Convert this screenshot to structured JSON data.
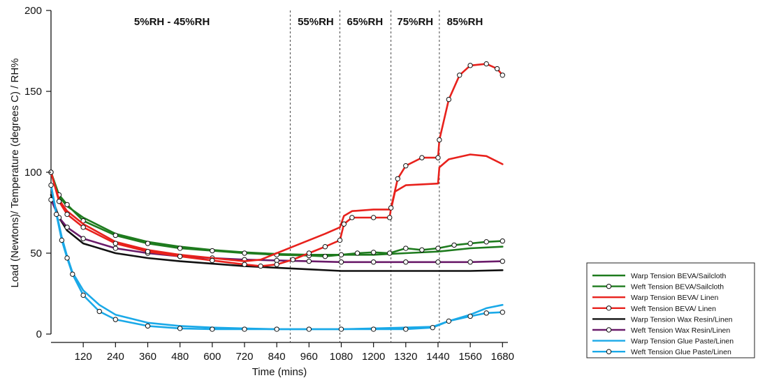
{
  "chart_data": {
    "type": "line",
    "title": "",
    "xlabel": "Time (mins)",
    "ylabel": "Load (Newtons)/ Temperature (degrees C) / RH%",
    "xlim": [
      0,
      1700
    ],
    "ylim": [
      0,
      200
    ],
    "x_ticks": [
      120,
      240,
      360,
      480,
      600,
      720,
      840,
      960,
      1080,
      1200,
      1320,
      1440,
      1560,
      1680
    ],
    "x_tick_labels": [
      "120",
      "240",
      "360",
      "480",
      "600",
      "720",
      "840",
      "960",
      "1080",
      "1200",
      "1320",
      "1440",
      "1560",
      "1680"
    ],
    "y_ticks": [
      0,
      50,
      100,
      150,
      200
    ],
    "y_tick_labels": [
      "0",
      "50",
      "100",
      "150",
      "200"
    ],
    "grid": false,
    "legend_position": "bottom-right",
    "phase_boundaries": [
      890,
      1075,
      1265,
      1445
    ],
    "phases": [
      {
        "label": "5%RH - 45%RH",
        "x": 450
      },
      {
        "label": "55%RH",
        "x": 985
      },
      {
        "label": "65%RH",
        "x": 1168
      },
      {
        "label": "75%RH",
        "x": 1355
      },
      {
        "label": "85%RH",
        "x": 1540
      }
    ],
    "series": [
      {
        "name": "Warp Tension BEVA/Sailcloth",
        "color": "#1e7b1e",
        "markers": false,
        "points": [
          [
            0,
            100
          ],
          [
            30,
            85
          ],
          [
            60,
            79
          ],
          [
            120,
            72
          ],
          [
            240,
            62
          ],
          [
            360,
            57
          ],
          [
            480,
            54
          ],
          [
            600,
            52
          ],
          [
            720,
            50.5
          ],
          [
            840,
            49.5
          ],
          [
            960,
            49
          ],
          [
            1080,
            49
          ],
          [
            1200,
            49
          ],
          [
            1320,
            50
          ],
          [
            1440,
            51
          ],
          [
            1560,
            53
          ],
          [
            1680,
            54
          ]
        ]
      },
      {
        "name": "Weft Tension BEVA/Sailcloth",
        "color": "#1e7b1e",
        "markers": true,
        "points": [
          [
            0,
            100
          ],
          [
            30,
            86
          ],
          [
            60,
            80
          ],
          [
            120,
            70
          ],
          [
            240,
            61
          ],
          [
            360,
            56
          ],
          [
            480,
            53
          ],
          [
            600,
            51.5
          ],
          [
            720,
            50
          ],
          [
            840,
            49
          ],
          [
            960,
            48.5
          ],
          [
            1020,
            48
          ],
          [
            1080,
            49
          ],
          [
            1140,
            50
          ],
          [
            1200,
            50.5
          ],
          [
            1260,
            50
          ],
          [
            1320,
            53
          ],
          [
            1380,
            52
          ],
          [
            1440,
            53
          ],
          [
            1500,
            55
          ],
          [
            1560,
            56
          ],
          [
            1620,
            57
          ],
          [
            1680,
            57.5
          ]
        ]
      },
      {
        "name": "Warp Tension BEVA/ Linen",
        "color": "#e8211c",
        "markers": false,
        "points": [
          [
            0,
            100
          ],
          [
            30,
            83
          ],
          [
            60,
            76
          ],
          [
            120,
            68
          ],
          [
            240,
            57
          ],
          [
            360,
            52
          ],
          [
            480,
            49
          ],
          [
            600,
            47
          ],
          [
            720,
            45
          ],
          [
            780,
            46
          ],
          [
            840,
            50
          ],
          [
            900,
            54
          ],
          [
            960,
            58
          ],
          [
            1020,
            62
          ],
          [
            1075,
            66
          ],
          [
            1090,
            73
          ],
          [
            1120,
            76
          ],
          [
            1200,
            77
          ],
          [
            1265,
            77
          ],
          [
            1280,
            88
          ],
          [
            1320,
            92
          ],
          [
            1440,
            93
          ],
          [
            1445,
            103
          ],
          [
            1480,
            108
          ],
          [
            1560,
            111
          ],
          [
            1620,
            110
          ],
          [
            1680,
            105
          ]
        ]
      },
      {
        "name": "Weft Tension BEVA/ Linen",
        "color": "#e8211c",
        "markers": true,
        "points": [
          [
            0,
            100
          ],
          [
            30,
            82
          ],
          [
            60,
            74
          ],
          [
            120,
            66
          ],
          [
            240,
            56
          ],
          [
            360,
            51
          ],
          [
            480,
            48
          ],
          [
            600,
            45.5
          ],
          [
            720,
            43
          ],
          [
            780,
            42
          ],
          [
            840,
            43
          ],
          [
            900,
            46
          ],
          [
            960,
            50
          ],
          [
            1020,
            54
          ],
          [
            1075,
            58
          ],
          [
            1090,
            68
          ],
          [
            1120,
            72
          ],
          [
            1200,
            72
          ],
          [
            1260,
            72
          ],
          [
            1265,
            78
          ],
          [
            1290,
            96
          ],
          [
            1320,
            104
          ],
          [
            1380,
            109
          ],
          [
            1440,
            109
          ],
          [
            1445,
            120
          ],
          [
            1480,
            145
          ],
          [
            1520,
            160
          ],
          [
            1560,
            166
          ],
          [
            1620,
            167
          ],
          [
            1660,
            164
          ],
          [
            1680,
            160
          ]
        ]
      },
      {
        "name": "Warp Tension  Wax Resin/Linen",
        "color": "#111111",
        "markers": false,
        "points": [
          [
            0,
            86
          ],
          [
            30,
            72
          ],
          [
            60,
            64
          ],
          [
            120,
            56
          ],
          [
            240,
            50
          ],
          [
            360,
            47
          ],
          [
            480,
            45
          ],
          [
            600,
            43.5
          ],
          [
            720,
            42
          ],
          [
            840,
            41
          ],
          [
            960,
            40
          ],
          [
            1080,
            39
          ],
          [
            1200,
            39
          ],
          [
            1320,
            39
          ],
          [
            1440,
            39
          ],
          [
            1560,
            39
          ],
          [
            1680,
            39.5
          ]
        ]
      },
      {
        "name": "Weft Tension Wax Resin/Linen",
        "color": "#6a1b6a",
        "markers": true,
        "points": [
          [
            0,
            83
          ],
          [
            30,
            72
          ],
          [
            60,
            66
          ],
          [
            120,
            59
          ],
          [
            240,
            53
          ],
          [
            360,
            50
          ],
          [
            480,
            48
          ],
          [
            600,
            47
          ],
          [
            720,
            46
          ],
          [
            840,
            45.5
          ],
          [
            960,
            45
          ],
          [
            1080,
            44.5
          ],
          [
            1200,
            44.5
          ],
          [
            1320,
            44.5
          ],
          [
            1440,
            44.5
          ],
          [
            1560,
            44.5
          ],
          [
            1680,
            45
          ]
        ]
      },
      {
        "name": "Warp Tension Glue Paste/Linen",
        "color": "#1aa9e8",
        "markers": false,
        "points": [
          [
            0,
            92
          ],
          [
            20,
            75
          ],
          [
            40,
            60
          ],
          [
            60,
            48
          ],
          [
            80,
            38
          ],
          [
            120,
            27
          ],
          [
            180,
            18
          ],
          [
            240,
            12
          ],
          [
            360,
            7
          ],
          [
            480,
            5
          ],
          [
            600,
            4
          ],
          [
            720,
            3.5
          ],
          [
            840,
            3
          ],
          [
            960,
            3
          ],
          [
            1080,
            3
          ],
          [
            1200,
            3.5
          ],
          [
            1320,
            4
          ],
          [
            1420,
            4.5
          ],
          [
            1480,
            8
          ],
          [
            1560,
            12
          ],
          [
            1620,
            16
          ],
          [
            1680,
            18
          ]
        ]
      },
      {
        "name": "Weft Tension Glue Paste/Linen",
        "color": "#1aa9e8",
        "markers": true,
        "points": [
          [
            0,
            92
          ],
          [
            20,
            74
          ],
          [
            40,
            58
          ],
          [
            60,
            47
          ],
          [
            80,
            37
          ],
          [
            120,
            24
          ],
          [
            180,
            14
          ],
          [
            240,
            9
          ],
          [
            360,
            5
          ],
          [
            480,
            3.5
          ],
          [
            600,
            3
          ],
          [
            720,
            3
          ],
          [
            840,
            3
          ],
          [
            960,
            3
          ],
          [
            1080,
            3
          ],
          [
            1200,
            3
          ],
          [
            1320,
            3
          ],
          [
            1420,
            4
          ],
          [
            1480,
            8
          ],
          [
            1560,
            11
          ],
          [
            1620,
            13
          ],
          [
            1680,
            13.5
          ]
        ]
      }
    ]
  }
}
